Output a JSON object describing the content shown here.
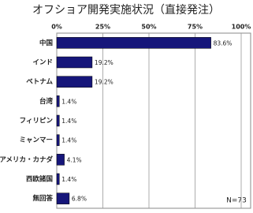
{
  "chart_data": {
    "type": "barh",
    "title": "オフショア開発実施状況（直接発注）",
    "categories": [
      "中国",
      "インド",
      "ベトナム",
      "台湾",
      "フィリピン",
      "ミャンマー",
      "アメリカ・カナダ",
      "西欧諸国",
      "無回答"
    ],
    "values": [
      83.6,
      19.2,
      19.2,
      1.4,
      1.4,
      1.4,
      4.1,
      1.4,
      6.8
    ],
    "value_labels": [
      "83.6%",
      "19.2%",
      "19.2%",
      "1.4%",
      "1.4%",
      "1.4%",
      "4.1%",
      "1.4%",
      "6.8%"
    ],
    "color": "#16167a",
    "xlim": [
      0,
      100
    ],
    "xticks": [
      {
        "value": 0,
        "label": "0%"
      },
      {
        "value": 25,
        "label": "25%"
      },
      {
        "value": 50,
        "label": "50%"
      },
      {
        "value": 75,
        "label": "75%"
      },
      {
        "value": 100,
        "label": "100%"
      }
    ],
    "grid": true,
    "annotation": "N=73"
  }
}
